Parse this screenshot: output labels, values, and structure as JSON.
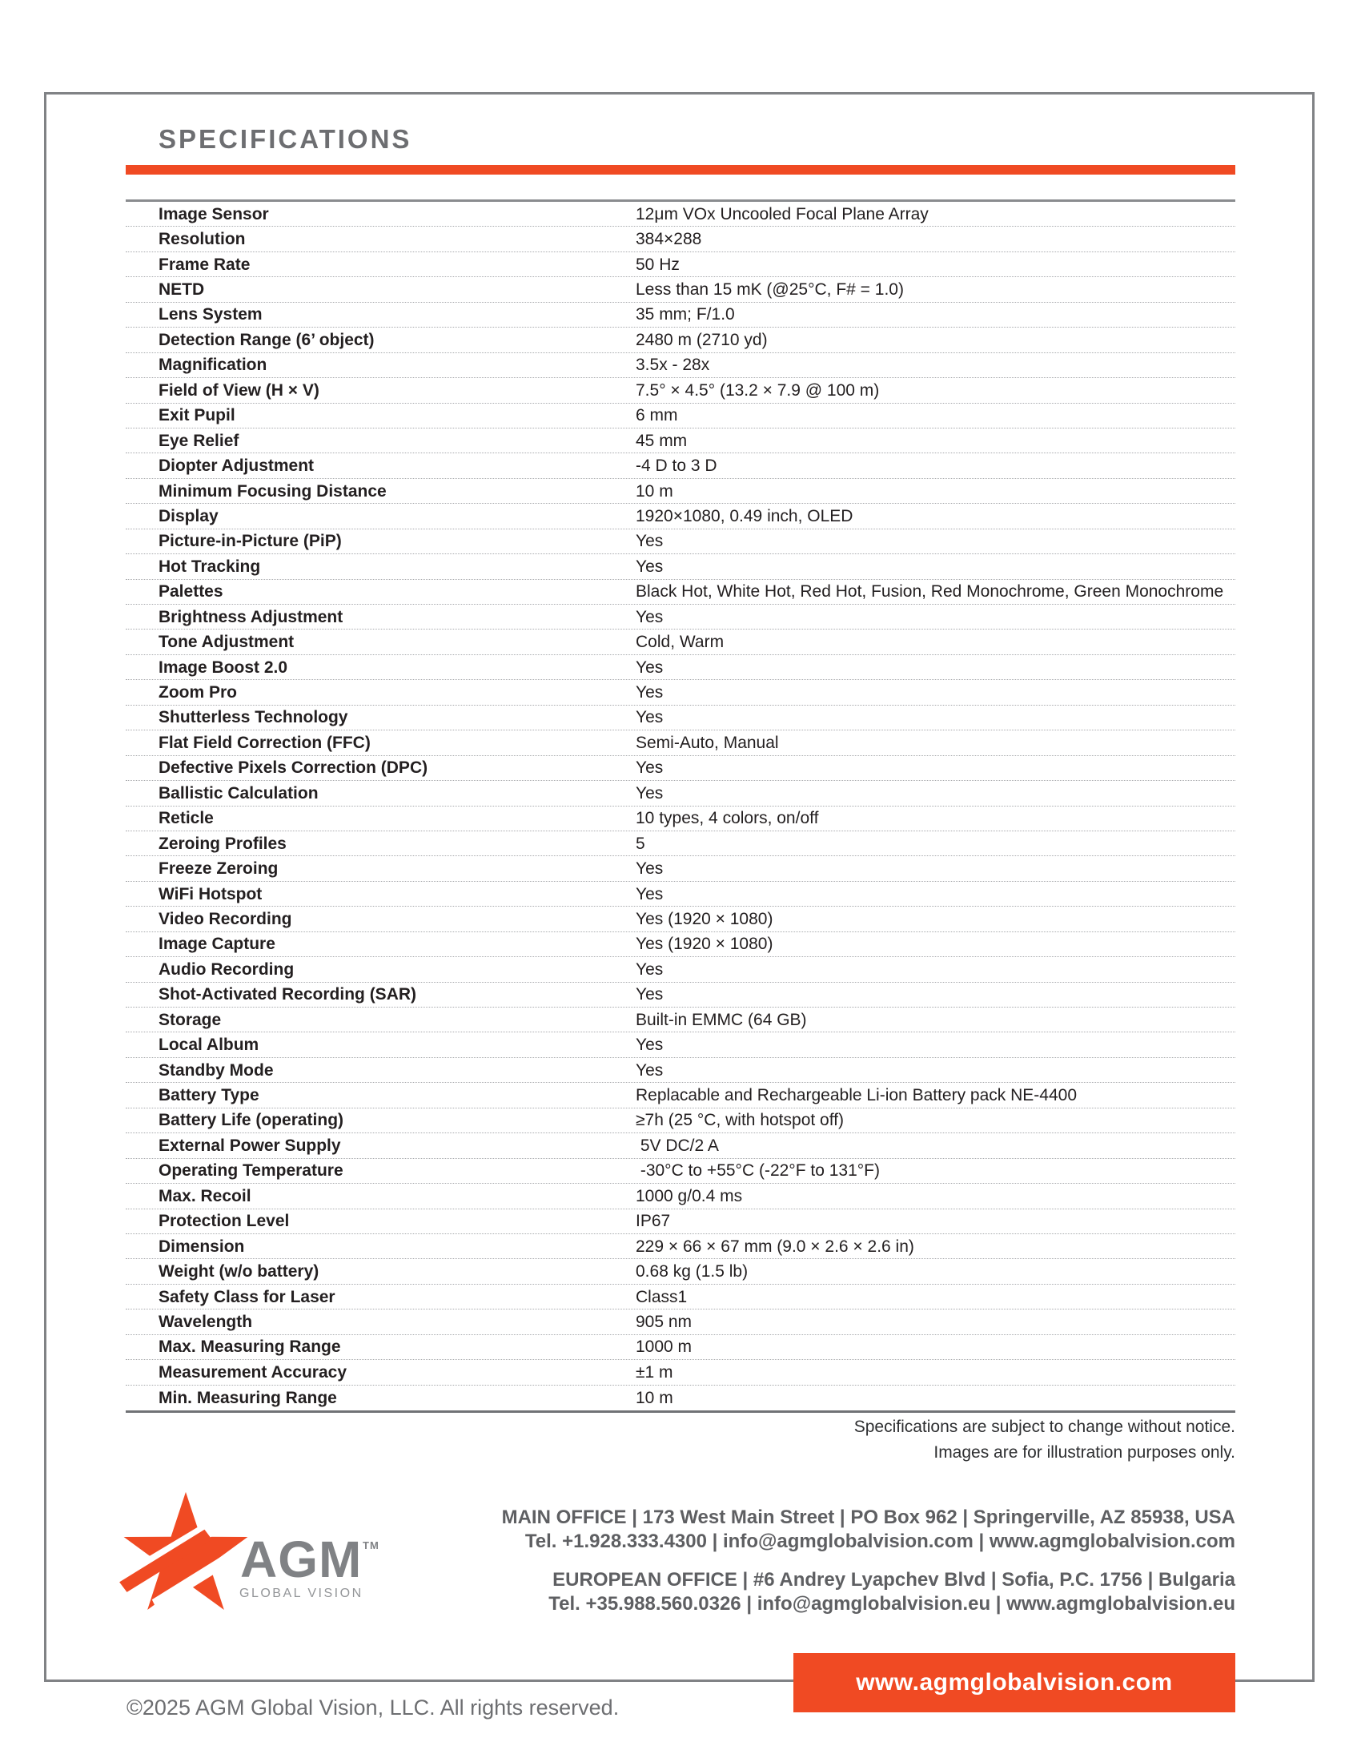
{
  "title": "SPECIFICATIONS",
  "specs": [
    {
      "label": "Image Sensor",
      "value": "12μm VOx Uncooled Focal Plane Array"
    },
    {
      "label": "Resolution",
      "value": "384×288"
    },
    {
      "label": "Frame Rate",
      "value": "50 Hz"
    },
    {
      "label": "NETD",
      "value": "Less than 15 mK (@25°C, F# = 1.0)"
    },
    {
      "label": "Lens System",
      "value": "35 mm; F/1.0"
    },
    {
      "label": "Detection Range (6’ object)",
      "value": "2480 m (2710 yd)"
    },
    {
      "label": "Magnification",
      "value": "3.5x - 28x"
    },
    {
      "label": "Field of View (H × V)",
      "value": "7.5° × 4.5° (13.2 × 7.9 @ 100 m)"
    },
    {
      "label": "Exit Pupil",
      "value": "6 mm"
    },
    {
      "label": "Eye Relief",
      "value": "45 mm"
    },
    {
      "label": "Diopter Adjustment",
      "value": "-4 D to 3 D"
    },
    {
      "label": "Minimum Focusing Distance",
      "value": "10 m"
    },
    {
      "label": "Display",
      "value": "1920×1080, 0.49 inch, OLED"
    },
    {
      "label": "Picture-in-Picture (PiP)",
      "value": "Yes"
    },
    {
      "label": "Hot Tracking",
      "value": "Yes"
    },
    {
      "label": "Palettes",
      "value": "Black Hot, White Hot, Red Hot, Fusion, Red Monochrome, Green Monochrome"
    },
    {
      "label": "Brightness Adjustment",
      "value": "Yes"
    },
    {
      "label": "Tone Adjustment",
      "value": "Cold, Warm"
    },
    {
      "label": "Image Boost 2.0",
      "value": "Yes"
    },
    {
      "label": "Zoom Pro",
      "value": "Yes"
    },
    {
      "label": "Shutterless Technology",
      "value": "Yes"
    },
    {
      "label": "Flat Field Correction (FFC)",
      "value": "Semi-Auto, Manual"
    },
    {
      "label": "Defective Pixels Correction (DPC)",
      "value": "Yes"
    },
    {
      "label": "Ballistic Calculation",
      "value": "Yes"
    },
    {
      "label": "Reticle",
      "value": "10 types, 4 colors, on/off"
    },
    {
      "label": "Zeroing Profiles",
      "value": "5"
    },
    {
      "label": "Freeze Zeroing",
      "value": "Yes"
    },
    {
      "label": "WiFi Hotspot",
      "value": "Yes"
    },
    {
      "label": "Video Recording",
      "value": "Yes (1920 × 1080)"
    },
    {
      "label": "Image Capture",
      "value": "Yes (1920 × 1080)"
    },
    {
      "label": "Audio Recording",
      "value": "Yes"
    },
    {
      "label": "Shot-Activated Recording (SAR)",
      "value": "Yes"
    },
    {
      "label": "Storage",
      "value": "Built-in EMMC (64 GB)"
    },
    {
      "label": "Local Album",
      "value": "Yes"
    },
    {
      "label": "Standby Mode",
      "value": "Yes"
    },
    {
      "label": "Battery Type",
      "value": "Replacable and Rechargeable Li-ion Battery pack NE-4400"
    },
    {
      "label": "Battery Life (operating)",
      "value": "≥7h (25 °C, with hotspot off)"
    },
    {
      "label": "External Power Supply",
      "value": " 5V DC/2 A"
    },
    {
      "label": "Operating Temperature",
      "value": " -30°C to +55°C (-22°F to 131°F)"
    },
    {
      "label": "Max. Recoil",
      "value": "1000 g/0.4 ms"
    },
    {
      "label": "Protection Level",
      "value": "IP67"
    },
    {
      "label": "Dimension",
      "value": "229 × 66 × 67 mm (9.0 × 2.6 × 2.6 in)"
    },
    {
      "label": "Weight (w/o battery)",
      "value": "0.68 kg (1.5 lb)"
    },
    {
      "label": "Safety Class for Laser",
      "value": "Class1"
    },
    {
      "label": "Wavelength",
      "value": "905 nm"
    },
    {
      "label": "Max. Measuring Range",
      "value": "1000 m"
    },
    {
      "label": "Measurement Accuracy",
      "value": "±1 m"
    },
    {
      "label": "Min. Measuring Range",
      "value": "10 m"
    }
  ],
  "notes": [
    "Specifications are subject to change without notice.",
    "Images are for illustration purposes only."
  ],
  "offices": {
    "main_line1": "MAIN OFFICE | 173 West Main Street | PO Box 962 | Springerville, AZ 85938, USA",
    "main_line2": "Tel. +1.928.333.4300 | info@agmglobalvision.com | www.agmglobalvision.com",
    "eu_line1": "EUROPEAN OFFICE | #6 Andrey Lyapchev Blvd | Sofia, P.C. 1756 | Bulgaria",
    "eu_line2": "Tel. +35.988.560.0326 | info@agmglobalvision.eu | www.agmglobalvision.eu"
  },
  "logo": {
    "brand": "AGM",
    "tm": "TM",
    "tagline": "GLOBAL VISION",
    "star_icon": "agm-star-icon"
  },
  "website_bar": "www.agmglobalvision.com",
  "copyright": "©2025 AGM Global Vision, LLC. All rights reserved.",
  "colors": {
    "accent_orange": "#F04A23",
    "title_gray": "#6D6E71",
    "border_gray": "#808285",
    "text_black": "#231F20"
  }
}
